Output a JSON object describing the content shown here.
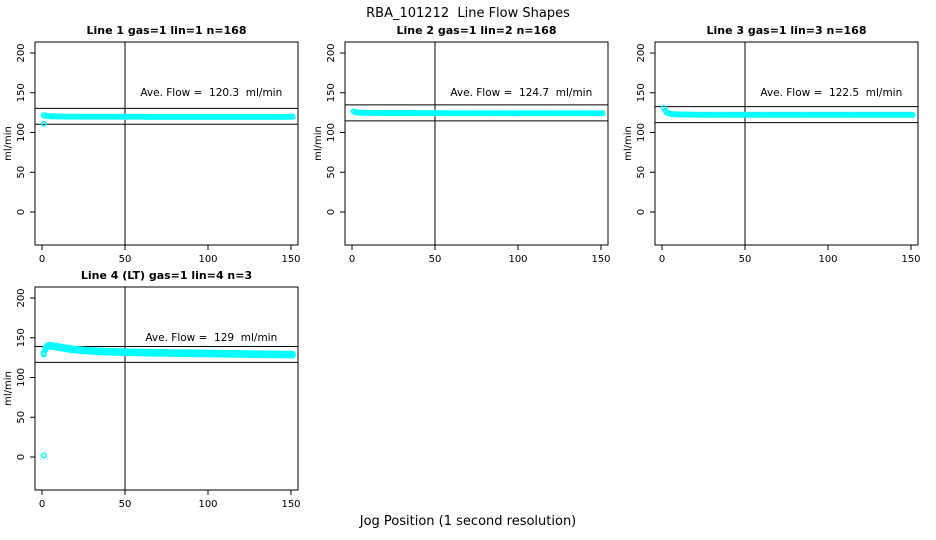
{
  "page": {
    "main_title": "RBA_101212  Line Flow Shapes",
    "shared_xlabel": "Jog Position (1 second resolution)"
  },
  "colors": {
    "points": "#00FFFF",
    "lines": "#000000",
    "background": "#FFFFFF"
  },
  "chart_data": [
    {
      "type": "scatter",
      "title": "Line 1 gas=1 lin=1 n=168",
      "annotation": "Ave. Flow =  120.3  ml/min",
      "ave_flow": 120.3,
      "ylabel": "ml/min",
      "xticks": [
        0,
        50,
        100,
        150
      ],
      "yticks": [
        0,
        50,
        100,
        150,
        200
      ],
      "xlim": [
        -4.5,
        154.5
      ],
      "ylim": [
        -41,
        214
      ],
      "vline_x": 50,
      "hlines": [
        130.3,
        110.3
      ],
      "x_range": [
        1,
        151
      ],
      "profile": [
        [
          2,
          121.5
        ],
        [
          3,
          120.8
        ],
        [
          6,
          120.3
        ],
        [
          15,
          120.0
        ],
        [
          40,
          119.8
        ],
        [
          80,
          119.6
        ],
        [
          120,
          119.6
        ],
        [
          151,
          119.7
        ]
      ],
      "extra_points": [
        [
          1,
          111
        ]
      ],
      "band_halfwidth": 0,
      "annotation_pos": [
        102,
        150
      ]
    },
    {
      "type": "scatter",
      "title": "Line 2 gas=1 lin=2 n=168",
      "annotation": "Ave. Flow =  124.7  ml/min",
      "ave_flow": 124.7,
      "ylabel": "ml/min",
      "xticks": [
        0,
        50,
        100,
        150
      ],
      "yticks": [
        0,
        50,
        100,
        150,
        200
      ],
      "xlim": [
        -4.5,
        154.5
      ],
      "ylim": [
        -41,
        214
      ],
      "vline_x": 50,
      "hlines": [
        134.7,
        114.7
      ],
      "x_range": [
        1,
        151
      ],
      "profile": [
        [
          1,
          126.5
        ],
        [
          2,
          125.5
        ],
        [
          4,
          125.0
        ],
        [
          15,
          124.6
        ],
        [
          60,
          124.3
        ],
        [
          151,
          124.2
        ]
      ],
      "extra_points": [],
      "band_halfwidth": 0,
      "annotation_pos": [
        102,
        150
      ]
    },
    {
      "type": "scatter",
      "title": "Line 3 gas=1 lin=3 n=168",
      "annotation": "Ave. Flow =  122.5  ml/min",
      "ave_flow": 122.5,
      "ylabel": "ml/min",
      "xticks": [
        0,
        50,
        100,
        150
      ],
      "yticks": [
        0,
        50,
        100,
        150,
        200
      ],
      "xlim": [
        -4.5,
        154.5
      ],
      "ylim": [
        -41,
        214
      ],
      "vline_x": 50,
      "hlines": [
        132.5,
        112.5
      ],
      "x_range": [
        1,
        151
      ],
      "profile": [
        [
          1,
          131.0
        ],
        [
          2,
          127.5
        ],
        [
          3,
          125.0
        ],
        [
          5,
          123.5
        ],
        [
          9,
          122.8
        ],
        [
          20,
          122.4
        ],
        [
          151,
          122.2
        ]
      ],
      "extra_points": [],
      "band_halfwidth": 0,
      "annotation_pos": [
        102,
        150
      ]
    },
    {
      "type": "scatter",
      "title": "Line 4 (LT) gas=1 lin=4 n=3",
      "annotation": "Ave. Flow =  129  ml/min",
      "ave_flow": 129,
      "ylabel": "ml/min",
      "xticks": [
        0,
        50,
        100,
        150
      ],
      "yticks": [
        0,
        50,
        100,
        150,
        200
      ],
      "xlim": [
        -4.5,
        154.5
      ],
      "ylim": [
        -41,
        214
      ],
      "vline_x": 50,
      "hlines": [
        139,
        119
      ],
      "x_range": [
        1,
        151
      ],
      "profile": [
        [
          1,
          130.0
        ],
        [
          2,
          136.0
        ],
        [
          3,
          139.0
        ],
        [
          5,
          140.0
        ],
        [
          8,
          139.0
        ],
        [
          12,
          137.5
        ],
        [
          18,
          135.5
        ],
        [
          25,
          134.0
        ],
        [
          35,
          132.8
        ],
        [
          50,
          131.8
        ],
        [
          70,
          131.0
        ],
        [
          100,
          130.2
        ],
        [
          130,
          129.3
        ],
        [
          151,
          128.8
        ]
      ],
      "extra_points": [
        [
          1,
          2
        ]
      ],
      "band_halfwidth": 1.1,
      "annotation_pos": [
        102,
        150
      ]
    }
  ]
}
